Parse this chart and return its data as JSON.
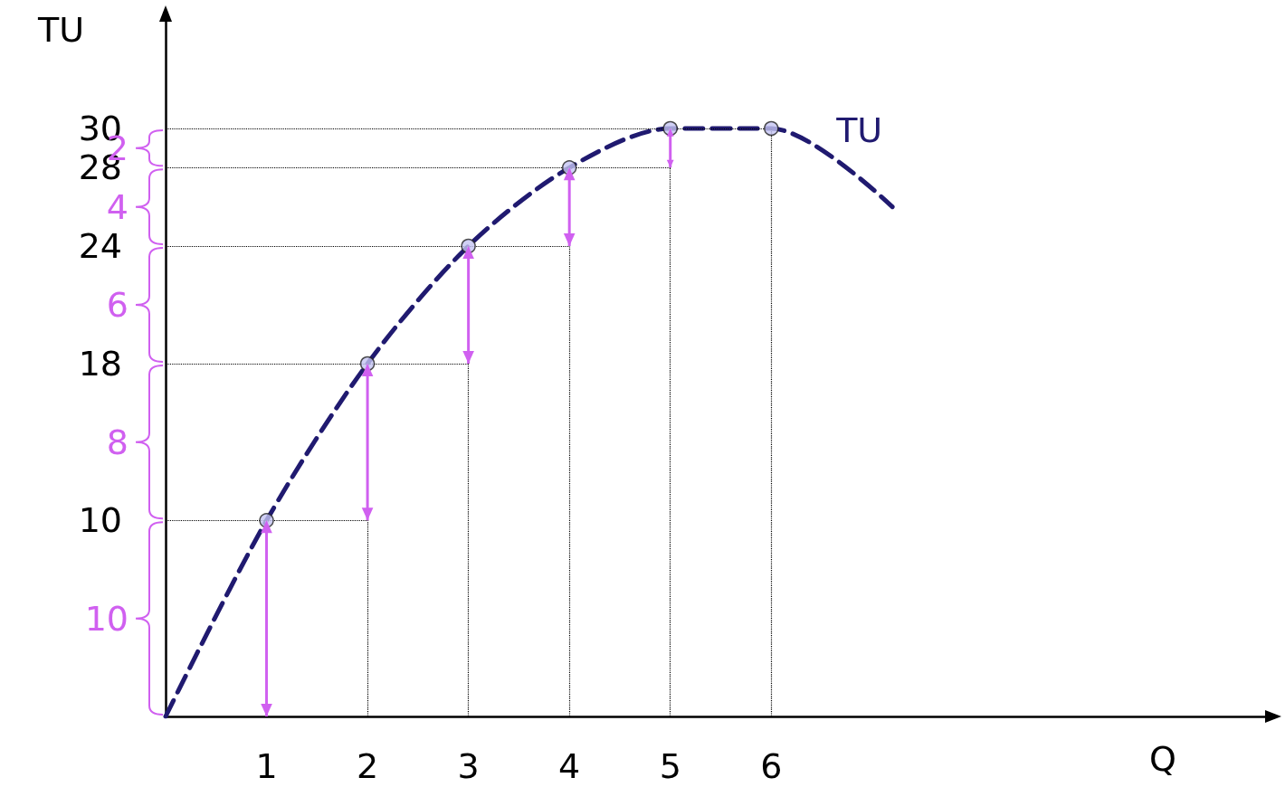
{
  "chart_data": {
    "type": "line",
    "xlabel": "Q",
    "ylabel": "TU",
    "xlim": [
      0,
      11
    ],
    "xticks": [
      1,
      2,
      3,
      4,
      5,
      6
    ],
    "ylim": [
      0,
      36
    ],
    "yticks": [
      10,
      18,
      24,
      28,
      30
    ],
    "series": [
      {
        "name": "TU",
        "color": "#201a70",
        "line_style": "dashed",
        "marker": "none",
        "x": [
          0,
          1,
          2,
          3,
          4,
          5,
          6,
          7.2
        ],
        "values": [
          0,
          10,
          18,
          24,
          28,
          30,
          30,
          26
        ]
      },
      {
        "type": "scatter",
        "color": "#c4c4f2",
        "marker": "circle",
        "x": [
          1,
          2,
          3,
          4,
          5,
          6
        ],
        "values": [
          10,
          18,
          24,
          28,
          30,
          30
        ]
      },
      {
        "type": "bar",
        "color": "#d060f0",
        "x": [
          1,
          2,
          3,
          4,
          5
        ],
        "base": [
          0,
          10,
          18,
          24,
          28
        ],
        "values": [
          10,
          8,
          6,
          4,
          2
        ]
      }
    ],
    "ref_lines": [
      {
        "axis": "y",
        "value": 10,
        "color": "#000000",
        "line_style": "dotted"
      },
      {
        "axis": "y",
        "value": 18,
        "color": "#000000",
        "line_style": "dotted"
      },
      {
        "axis": "y",
        "value": 24,
        "color": "#000000",
        "line_style": "dotted"
      },
      {
        "axis": "y",
        "value": 28,
        "color": "#000000",
        "line_style": "dotted"
      },
      {
        "axis": "y",
        "value": 30,
        "color": "#000000",
        "line_style": "dotted"
      },
      {
        "axis": "x",
        "value": 2,
        "color": "#000000",
        "line_style": "dotted"
      },
      {
        "axis": "x",
        "value": 3,
        "color": "#000000",
        "line_style": "dotted"
      },
      {
        "axis": "x",
        "value": 4,
        "color": "#000000",
        "line_style": "dotted"
      },
      {
        "axis": "x",
        "value": 5,
        "color": "#000000",
        "line_style": "dotted"
      },
      {
        "axis": "x",
        "value": 6,
        "color": "#000000",
        "line_style": "dotted"
      }
    ],
    "annotations": [
      "10",
      "8",
      "6",
      "4",
      "2"
    ],
    "legend": false,
    "grid": false
  }
}
